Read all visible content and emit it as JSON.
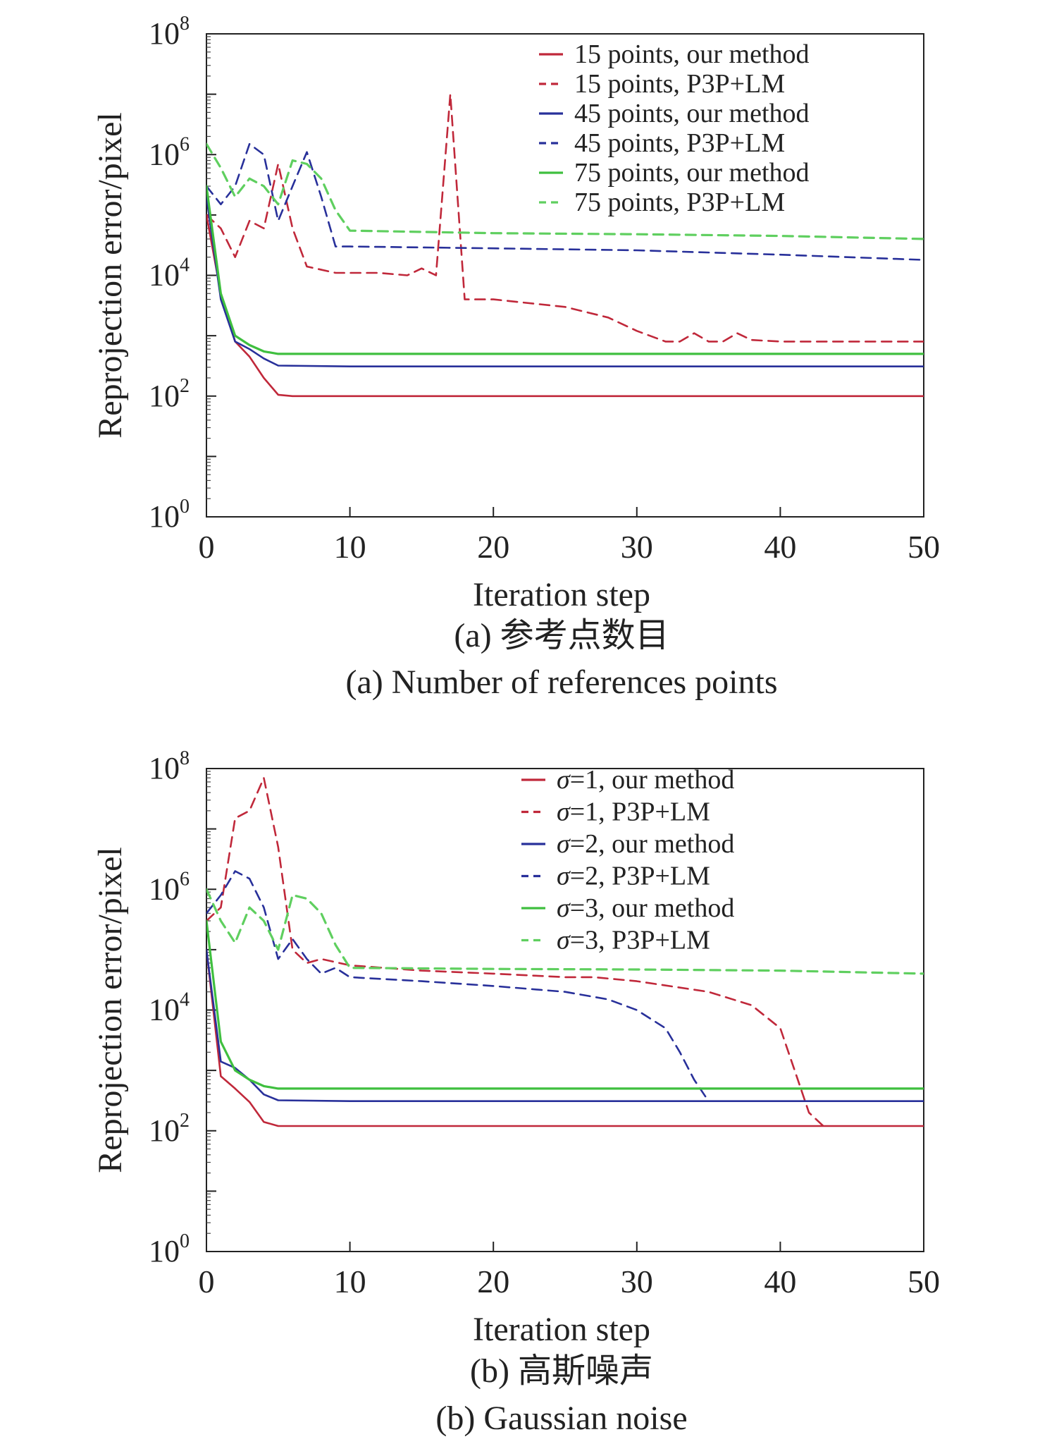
{
  "chart_data": [
    {
      "type": "line",
      "id": "a",
      "xlabel": "Iteration step",
      "ylabel": "Reprojection error/pixel",
      "xlim": [
        0,
        50
      ],
      "ylim_log10": [
        0,
        8
      ],
      "y_scale": "log",
      "x_ticks": [
        "0",
        "10",
        "20",
        "30",
        "40",
        "50"
      ],
      "y_tick_base": "10",
      "y_tick_exponents": [
        "0",
        "2",
        "4",
        "6",
        "8"
      ],
      "caption_cn": "(a) 参考点数目",
      "caption_en": "(a) Number of references points",
      "legend_position": "top-right",
      "legend_label_style": "plain",
      "series": [
        {
          "name": "15 points, our method",
          "label": "15 points, our method",
          "color": "#c0283a",
          "dash": false,
          "points": [
            [
              0,
              100000
            ],
            [
              1,
              5000
            ],
            [
              2,
              800
            ],
            [
              3,
              450
            ],
            [
              4,
              200
            ],
            [
              5,
              105
            ],
            [
              6,
              100
            ],
            [
              10,
              100
            ],
            [
              20,
              100
            ],
            [
              30,
              100
            ],
            [
              40,
              100
            ],
            [
              50,
              100
            ]
          ]
        },
        {
          "name": "15 points, P3P+LM",
          "label": "15 points, P3P+LM",
          "color": "#c0283a",
          "dash": true,
          "points": [
            [
              0,
              100000
            ],
            [
              1,
              60000
            ],
            [
              2,
              20000
            ],
            [
              3,
              80000
            ],
            [
              4,
              60000
            ],
            [
              5,
              700000
            ],
            [
              6,
              60000
            ],
            [
              7,
              14000
            ],
            [
              9,
              11000
            ],
            [
              12,
              11000
            ],
            [
              14,
              10000
            ],
            [
              15,
              13000
            ],
            [
              16,
              10000
            ],
            [
              17,
              10000000
            ],
            [
              18,
              4000
            ],
            [
              20,
              4000
            ],
            [
              25,
              3000
            ],
            [
              28,
              2000
            ],
            [
              30,
              1200
            ],
            [
              32,
              800
            ],
            [
              33,
              800
            ],
            [
              34,
              1100
            ],
            [
              35,
              800
            ],
            [
              36,
              800
            ],
            [
              37,
              1100
            ],
            [
              38,
              850
            ],
            [
              40,
              800
            ],
            [
              50,
              800
            ]
          ]
        },
        {
          "name": "45 points, our method",
          "label": "45 points, our method",
          "color": "#28309a",
          "dash": false,
          "points": [
            [
              0,
              200000
            ],
            [
              1,
              4000
            ],
            [
              2,
              800
            ],
            [
              3,
              600
            ],
            [
              4,
              420
            ],
            [
              5,
              320
            ],
            [
              10,
              310
            ],
            [
              20,
              310
            ],
            [
              30,
              310
            ],
            [
              40,
              310
            ],
            [
              50,
              310
            ]
          ]
        },
        {
          "name": "45 points, P3P+LM",
          "label": "45 points, P3P+LM",
          "color": "#28309a",
          "dash": true,
          "points": [
            [
              0,
              300000
            ],
            [
              1,
              150000
            ],
            [
              2,
              300000
            ],
            [
              3,
              1500000
            ],
            [
              4,
              1000000
            ],
            [
              5,
              80000
            ],
            [
              6,
              300000
            ],
            [
              7,
              1100000
            ],
            [
              8,
              200000
            ],
            [
              9,
              30000
            ],
            [
              10,
              30000
            ],
            [
              20,
              28000
            ],
            [
              30,
              26000
            ],
            [
              40,
              22000
            ],
            [
              50,
              18000
            ]
          ]
        },
        {
          "name": "75 points, our method",
          "label": "75 points, our method",
          "color": "#3fbf3f",
          "dash": false,
          "points": [
            [
              0,
              300000
            ],
            [
              1,
              5000
            ],
            [
              2,
              1000
            ],
            [
              3,
              700
            ],
            [
              4,
              550
            ],
            [
              5,
              500
            ],
            [
              10,
              500
            ],
            [
              20,
              500
            ],
            [
              30,
              500
            ],
            [
              40,
              500
            ],
            [
              50,
              500
            ]
          ]
        },
        {
          "name": "75 points, P3P+LM",
          "label": "75 points, P3P+LM",
          "color": "#5fcf5f",
          "dash": true,
          "points": [
            [
              0,
              1500000
            ],
            [
              1,
              600000
            ],
            [
              2,
              200000
            ],
            [
              3,
              400000
            ],
            [
              4,
              300000
            ],
            [
              5,
              150000
            ],
            [
              6,
              800000
            ],
            [
              7,
              700000
            ],
            [
              8,
              400000
            ],
            [
              9,
              120000
            ],
            [
              10,
              55000
            ],
            [
              20,
              50000
            ],
            [
              30,
              48000
            ],
            [
              40,
              45000
            ],
            [
              50,
              40000
            ]
          ]
        }
      ]
    },
    {
      "type": "line",
      "id": "b",
      "xlabel": "Iteration step",
      "ylabel": "Reprojection error/pixel",
      "xlim": [
        0,
        50
      ],
      "ylim_log10": [
        0,
        8
      ],
      "y_scale": "log",
      "x_ticks": [
        "0",
        "10",
        "20",
        "30",
        "40",
        "50"
      ],
      "y_tick_base": "10",
      "y_tick_exponents": [
        "0",
        "2",
        "4",
        "6",
        "8"
      ],
      "caption_cn": "(b) 高斯噪声",
      "caption_en": "(b) Gaussian noise",
      "legend_position": "top-right",
      "legend_label_style": "sigma",
      "series": [
        {
          "name": "σ=1, our method",
          "label_sym": "σ",
          "label_rest": "=1, our method",
          "color": "#c0283a",
          "dash": false,
          "points": [
            [
              0,
              100000
            ],
            [
              1,
              800
            ],
            [
              2,
              500
            ],
            [
              3,
              300
            ],
            [
              4,
              140
            ],
            [
              5,
              120
            ],
            [
              10,
              120
            ],
            [
              20,
              120
            ],
            [
              30,
              120
            ],
            [
              40,
              120
            ],
            [
              50,
              120
            ]
          ]
        },
        {
          "name": "σ=1, P3P+LM",
          "label_sym": "σ",
          "label_rest": "=1, P3P+LM",
          "color": "#c0283a",
          "dash": true,
          "points": [
            [
              0,
              300000
            ],
            [
              1,
              500000
            ],
            [
              2,
              15000000
            ],
            [
              3,
              20000000
            ],
            [
              4,
              70000000
            ],
            [
              5,
              5000000
            ],
            [
              6,
              100000
            ],
            [
              7,
              60000
            ],
            [
              8,
              70000
            ],
            [
              10,
              55000
            ],
            [
              15,
              45000
            ],
            [
              20,
              40000
            ],
            [
              25,
              35000
            ],
            [
              27,
              35000
            ],
            [
              30,
              30000
            ],
            [
              35,
              20000
            ],
            [
              38,
              12000
            ],
            [
              40,
              5000
            ],
            [
              41,
              1000
            ],
            [
              42,
              200
            ],
            [
              43,
              120
            ]
          ]
        },
        {
          "name": "σ=2, our method",
          "label_sym": "σ",
          "label_rest": "=2, our method",
          "color": "#28309a",
          "dash": false,
          "points": [
            [
              0,
              100000
            ],
            [
              1,
              1400
            ],
            [
              2,
              1100
            ],
            [
              3,
              700
            ],
            [
              4,
              400
            ],
            [
              5,
              320
            ],
            [
              10,
              310
            ],
            [
              20,
              310
            ],
            [
              30,
              310
            ],
            [
              40,
              310
            ],
            [
              50,
              310
            ]
          ]
        },
        {
          "name": "σ=2, P3P+LM",
          "label_sym": "σ",
          "label_rest": "=2, P3P+LM",
          "color": "#28309a",
          "dash": true,
          "points": [
            [
              0,
              400000
            ],
            [
              1,
              800000
            ],
            [
              2,
              2000000
            ],
            [
              3,
              1500000
            ],
            [
              4,
              500000
            ],
            [
              5,
              70000
            ],
            [
              6,
              150000
            ],
            [
              7,
              70000
            ],
            [
              8,
              40000
            ],
            [
              9,
              50000
            ],
            [
              10,
              35000
            ],
            [
              15,
              30000
            ],
            [
              20,
              25000
            ],
            [
              25,
              20000
            ],
            [
              28,
              15000
            ],
            [
              30,
              10000
            ],
            [
              32,
              5000
            ],
            [
              33,
              2000
            ],
            [
              34,
              700
            ],
            [
              35,
              310
            ]
          ]
        },
        {
          "name": "σ=3, our method",
          "label_sym": "σ",
          "label_rest": "=3, our method",
          "color": "#3fbf3f",
          "dash": false,
          "points": [
            [
              0,
              300000
            ],
            [
              1,
              3000
            ],
            [
              2,
              1000
            ],
            [
              3,
              700
            ],
            [
              4,
              550
            ],
            [
              5,
              500
            ],
            [
              10,
              500
            ],
            [
              20,
              500
            ],
            [
              30,
              500
            ],
            [
              40,
              500
            ],
            [
              50,
              500
            ]
          ]
        },
        {
          "name": "σ=3, P3P+LM",
          "label_sym": "σ",
          "label_rest": "=3, P3P+LM",
          "color": "#5fcf5f",
          "dash": true,
          "points": [
            [
              0,
              1000000
            ],
            [
              1,
              300000
            ],
            [
              2,
              130000
            ],
            [
              3,
              500000
            ],
            [
              4,
              300000
            ],
            [
              5,
              100000
            ],
            [
              6,
              800000
            ],
            [
              7,
              700000
            ],
            [
              8,
              400000
            ],
            [
              9,
              120000
            ],
            [
              10,
              50000
            ],
            [
              20,
              48000
            ],
            [
              30,
              47000
            ],
            [
              40,
              45000
            ],
            [
              50,
              40000
            ]
          ]
        }
      ]
    }
  ]
}
